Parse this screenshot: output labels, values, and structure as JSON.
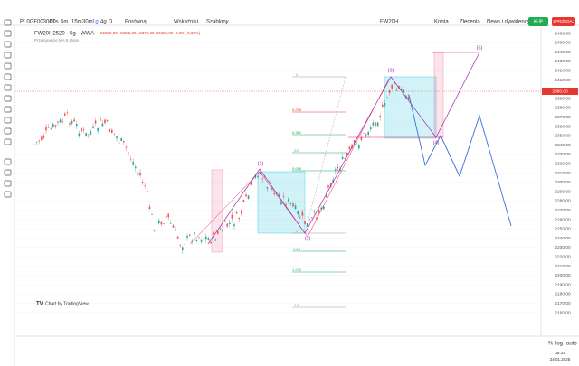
{
  "toolbar": {
    "symbol": "PL0GF003001",
    "intervals": [
      "60s",
      "5m",
      "15m",
      "30m",
      "1g",
      "4g",
      "D"
    ],
    "compare": "Porównaj",
    "indicators": "Wskaźniki",
    "templates": "Szablony",
    "instrument": "FW20H",
    "accounts": "Konta",
    "orders": "Zlecenia",
    "news": "News i dywidendy",
    "buy": "KUP",
    "sell": "SPRZEDAJ"
  },
  "legend": {
    "title": "FW20H2520 · 5g · WWA",
    "ohlc": "O2382,00 H2382,00 L2379,00 C2380,00 -2,00 (-0,08%)",
    "indicator": "Przesunięcie MA 9 close"
  },
  "fib_levels": [
    "0",
    "0.236",
    "0.382",
    "0.5",
    "0.618",
    "1",
    "1.13",
    "1.272",
    "1.5"
  ],
  "waves": [
    "(1)",
    "(2)",
    "(3)",
    "(4)",
    "(5)"
  ],
  "price_axis": {
    "labels": [
      "2460.00",
      "2450.00",
      "2440.00",
      "2430.00",
      "2420.00",
      "2410.00",
      "2400.00",
      "2390.00",
      "2380.00",
      "2370.00",
      "2360.00",
      "2350.00",
      "2340.00",
      "2330.00",
      "2320.00",
      "2310.00",
      "2300.00",
      "2290.00",
      "2280.00",
      "2270.00",
      "2260.00",
      "2250.00",
      "2240.00",
      "2230.00",
      "2220.00",
      "2210.00",
      "2200.00",
      "2190.00",
      "2180.00",
      "2170.00",
      "2160.00"
    ],
    "current": "2380,00"
  },
  "footer": {
    "branding": "Chart by TradingView",
    "percent": "%",
    "log": "log",
    "auto": "auto",
    "time": "08:33",
    "date": "24.01.2025"
  }
}
